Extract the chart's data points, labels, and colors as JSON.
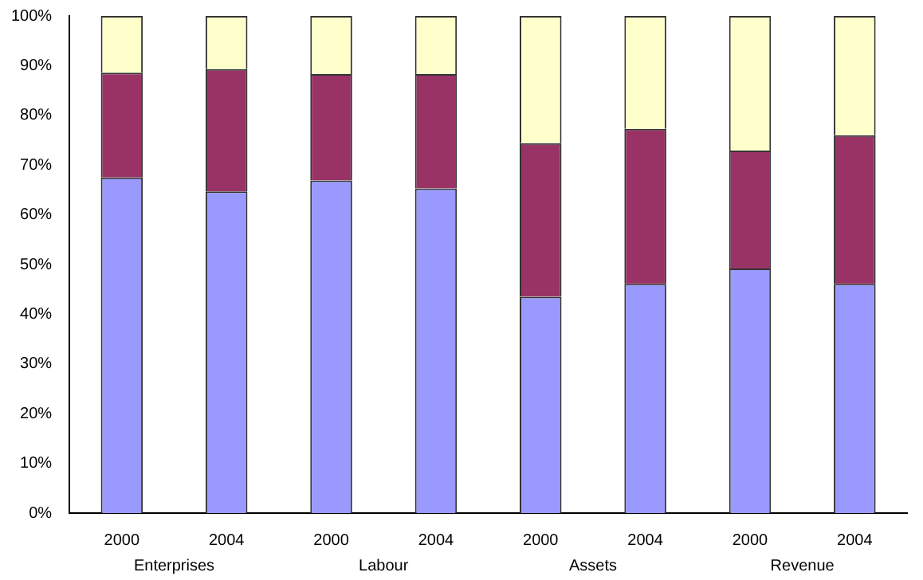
{
  "chart_data": {
    "type": "bar",
    "stacked": true,
    "categories": [
      "2000",
      "2004",
      "2000",
      "2004",
      "2000",
      "2004",
      "2000",
      "2004"
    ],
    "series": [
      {
        "color": "#9999ff",
        "values": [
          67.5,
          64.7,
          66.9,
          65.3,
          43.5,
          46.1,
          49.2,
          46.1
        ]
      },
      {
        "color": "#993366",
        "values": [
          21.1,
          24.6,
          21.4,
          23.0,
          30.9,
          31.2,
          23.7,
          29.9
        ]
      },
      {
        "color": "#ffffcc",
        "values": [
          11.4,
          10.7,
          11.7,
          11.7,
          25.6,
          22.7,
          27.1,
          24.0
        ]
      }
    ],
    "ylim": [
      0,
      100
    ],
    "yticks": [
      {
        "value": 0,
        "label": "0%"
      },
      {
        "value": 10,
        "label": "10%"
      },
      {
        "value": 20,
        "label": "20%"
      },
      {
        "value": 30,
        "label": "30%"
      },
      {
        "value": 40,
        "label": "40%"
      },
      {
        "value": 50,
        "label": "50%"
      },
      {
        "value": 60,
        "label": "60%"
      },
      {
        "value": 70,
        "label": "70%"
      },
      {
        "value": 80,
        "label": "80%"
      },
      {
        "value": 90,
        "label": "90%"
      },
      {
        "value": 100,
        "label": "100%"
      }
    ],
    "annotations": [
      "Enterprises",
      "Labour",
      "Assets",
      "Revenue"
    ],
    "grid": false,
    "legend": false
  }
}
